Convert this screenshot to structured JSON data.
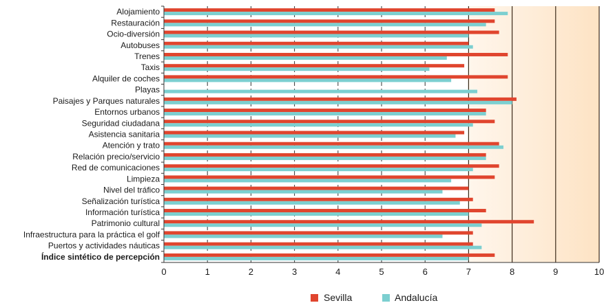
{
  "chart_data": {
    "type": "bar",
    "orientation": "horizontal",
    "categories": [
      "Alojamiento",
      "Restauración",
      "Ocio-diversión",
      "Autobuses",
      "Trenes",
      "Taxis",
      "Alquiler de coches",
      "Playas",
      "Paisajes y Parques naturales",
      "Entornos urbanos",
      "Seguridad ciudadana",
      "Asistencia sanitaria",
      "Atención y trato",
      "Relación precio/servicio",
      "Red de comunicaciones",
      "Limpieza",
      "Nivel del tráfico",
      "Señalización turística",
      "Información turística",
      "Patrimonio cultural",
      "Infraestructura para la práctica el golf",
      "Puertos y actividades náuticas",
      "Índice sintético de percepción"
    ],
    "bold_categories": [
      "Índice sintético de percepción"
    ],
    "series": [
      {
        "name": "Sevilla",
        "color": "#e0452e",
        "values": [
          7.6,
          7.6,
          7.7,
          7.0,
          7.9,
          6.9,
          7.9,
          null,
          8.1,
          7.4,
          7.6,
          6.9,
          7.7,
          7.4,
          7.7,
          7.6,
          7.0,
          7.1,
          7.4,
          8.5,
          7.1,
          7.1,
          7.6
        ]
      },
      {
        "name": "Andalucía",
        "color": "#7ccfd0",
        "values": [
          7.9,
          7.4,
          7.0,
          7.1,
          6.5,
          6.1,
          6.6,
          7.2,
          8.0,
          7.4,
          7.1,
          6.7,
          7.8,
          7.4,
          7.1,
          6.6,
          6.4,
          6.8,
          7.0,
          7.3,
          6.4,
          7.3,
          7.0
        ]
      }
    ],
    "xlim": [
      0,
      10
    ],
    "xticks": [
      "0",
      "1",
      "2",
      "3",
      "4",
      "5",
      "6",
      "7",
      "8",
      "9",
      "10"
    ],
    "grid": true,
    "highlight_range": [
      7,
      10
    ],
    "highlight_color": "#fde3c4",
    "legend_position": "bottom"
  }
}
